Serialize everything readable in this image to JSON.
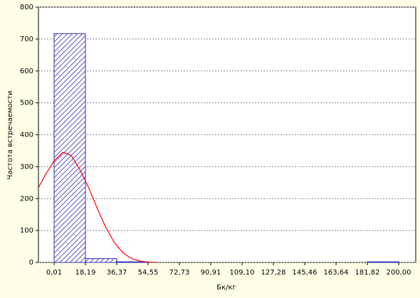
{
  "chart_data": {
    "type": "histogram",
    "xlabel": "Бк/кг",
    "ylabel": "Частота встречаемости",
    "bins": [
      0.01,
      18.19,
      36.37,
      54.55,
      72.73,
      90.91,
      109.1,
      127.28,
      145.46,
      163.64,
      181.82,
      200.0
    ],
    "counts": [
      717,
      12,
      2,
      0,
      0,
      0,
      0,
      0,
      0,
      0,
      2
    ],
    "color": "#2b2bb0",
    "curve": {
      "color": "#ff0000",
      "x": [
        -9,
        -5,
        0,
        5,
        10,
        15,
        20,
        25,
        30,
        35,
        40,
        45,
        50,
        55,
        60
      ],
      "values": [
        235,
        275,
        318,
        345,
        335,
        290,
        235,
        170,
        110,
        62,
        30,
        12,
        4,
        1,
        0
      ]
    },
    "xlim": [
      -9.08,
      209.9
    ],
    "ylim": [
      0,
      800
    ],
    "xticks": [
      {
        "value": 0.01,
        "label": "0,01"
      },
      {
        "value": 18.19,
        "label": "18,19"
      },
      {
        "value": 36.37,
        "label": "36,37"
      },
      {
        "value": 54.55,
        "label": "54,55"
      },
      {
        "value": 72.73,
        "label": "72,73"
      },
      {
        "value": 90.91,
        "label": "90,91"
      },
      {
        "value": 109.1,
        "label": "109,10"
      },
      {
        "value": 127.28,
        "label": "127,28"
      },
      {
        "value": 145.46,
        "label": "145,46"
      },
      {
        "value": 163.64,
        "label": "163,64"
      },
      {
        "value": 181.82,
        "label": "181,82"
      },
      {
        "value": 200.0,
        "label": "200,00"
      }
    ],
    "yticks": [
      0,
      100,
      200,
      300,
      400,
      500,
      600,
      700,
      800
    ],
    "grid": true
  }
}
